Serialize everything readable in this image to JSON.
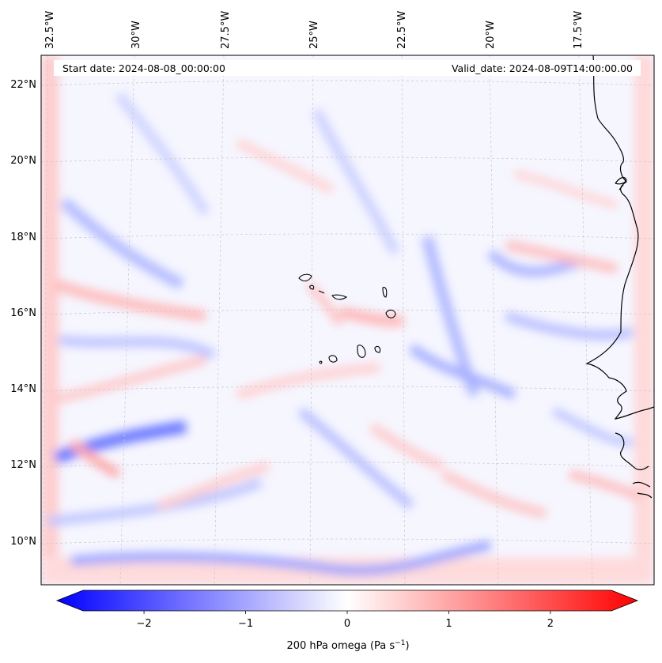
{
  "header": {
    "start_date": "Start date: 2024-08-08_00:00:00",
    "valid_date": "Valid_date: 2024-08-09T14:00:00.00"
  },
  "map": {
    "lon_labels": [
      "32.5°W",
      "30°W",
      "27.5°W",
      "25°W",
      "22.5°W",
      "20°W",
      "17.5°W"
    ],
    "lat_labels": [
      "22°N",
      "20°N",
      "18°N",
      "16°N",
      "14°N",
      "12°N",
      "10°N"
    ],
    "field": "200 hPa omega",
    "colormap": "bwr"
  },
  "colorbar": {
    "ticks": [
      "−2",
      "−1",
      "0",
      "1",
      "2"
    ],
    "tick_values": [
      -2,
      -1,
      0,
      1,
      2
    ],
    "range": [
      -2.6,
      2.6
    ],
    "label": "200 hPa omega (Pa s",
    "unit_exponent": "−1",
    "label_close": ")",
    "colors": {
      "negative": "#0000ff",
      "zero": "#ffffff",
      "positive": "#ff0000"
    }
  }
}
